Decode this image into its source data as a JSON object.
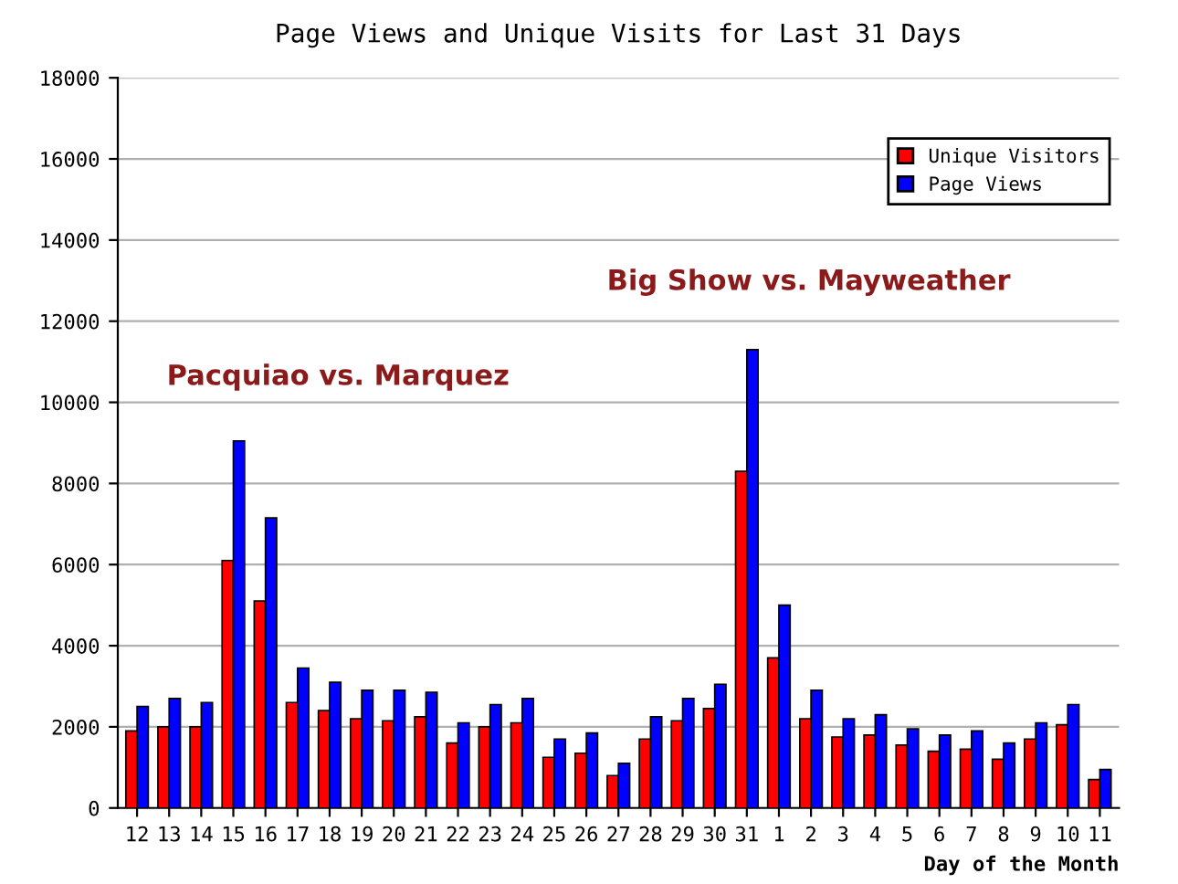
{
  "chart_data": {
    "type": "bar",
    "title": "Page Views and Unique Visits for Last 31 Days",
    "xlabel": "Day of the Month",
    "categories": [
      "12",
      "13",
      "14",
      "15",
      "16",
      "17",
      "18",
      "19",
      "20",
      "21",
      "22",
      "23",
      "24",
      "25",
      "26",
      "27",
      "28",
      "29",
      "30",
      "31",
      "1",
      "2",
      "3",
      "4",
      "5",
      "6",
      "7",
      "8",
      "9",
      "10",
      "11"
    ],
    "series": [
      {
        "name": "Unique Visitors",
        "color": "#ff0000",
        "values": [
          1900,
          2000,
          2000,
          6100,
          5100,
          2600,
          2400,
          2200,
          2150,
          2250,
          1600,
          2000,
          2100,
          1250,
          1350,
          800,
          1700,
          2150,
          2450,
          8300,
          3700,
          2200,
          1750,
          1800,
          1550,
          1400,
          1450,
          1200,
          1700,
          2050,
          700
        ]
      },
      {
        "name": "Page Views",
        "color": "#0000ff",
        "values": [
          2500,
          2700,
          2600,
          9050,
          7150,
          3450,
          3100,
          2900,
          2900,
          2850,
          2100,
          2550,
          2700,
          1700,
          1850,
          1100,
          2250,
          2700,
          3050,
          11300,
          5000,
          2900,
          2200,
          2300,
          1950,
          1800,
          1900,
          1600,
          2100,
          2550,
          950
        ]
      }
    ],
    "annotations": [
      "Pacquiao vs. Marquez",
      "Big Show vs. Mayweather"
    ],
    "ylim": [
      0,
      18000
    ],
    "yticks": [
      0,
      2000,
      4000,
      6000,
      8000,
      10000,
      12000,
      14000,
      16000,
      18000
    ],
    "grid": "y",
    "legend": "top right"
  }
}
